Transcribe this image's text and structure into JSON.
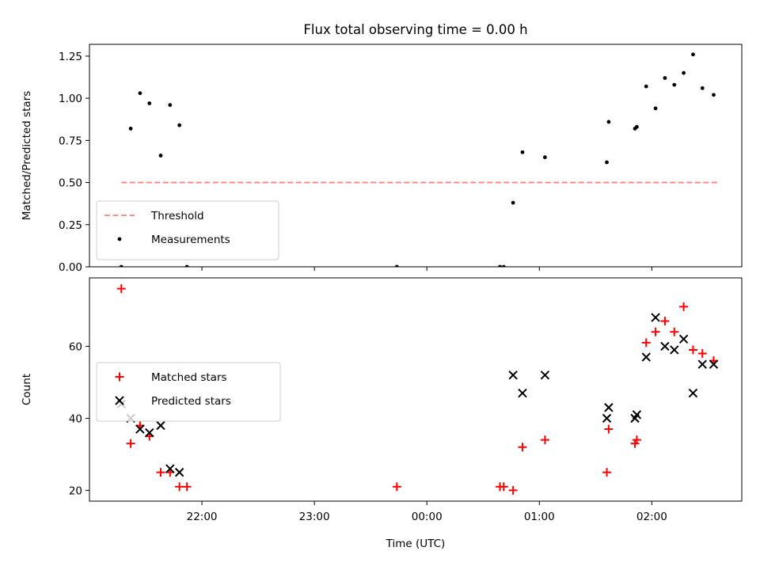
{
  "figure": {
    "title": "Flux total observing time = 0.00 h",
    "xlabel": "Time (UTC)",
    "xticks": [
      "22:00",
      "23:00",
      "00:00",
      "01:00",
      "02:00"
    ]
  },
  "chart_data": [
    {
      "type": "scatter",
      "ylabel": "Matched/Predicted stars",
      "ylim": [
        0,
        1.32
      ],
      "yticks": [
        "0.00",
        "0.25",
        "0.50",
        "0.75",
        "1.00",
        "1.25"
      ],
      "grid": false,
      "legend_position": "lower-left",
      "threshold": {
        "name": "Threshold",
        "value": 0.5,
        "x_start": "21:17",
        "x_end": "02:35",
        "color": "#ff7f7f"
      },
      "series": [
        {
          "name": "Measurements",
          "color": "#000000",
          "points": [
            {
              "x": "21:17",
              "y": 0.0
            },
            {
              "x": "21:22",
              "y": 0.82
            },
            {
              "x": "21:27",
              "y": 1.03
            },
            {
              "x": "21:32",
              "y": 0.97
            },
            {
              "x": "21:38",
              "y": 0.66
            },
            {
              "x": "21:43",
              "y": 0.96
            },
            {
              "x": "21:48",
              "y": 0.84
            },
            {
              "x": "21:52",
              "y": 0.0
            },
            {
              "x": "23:44",
              "y": 0.0
            },
            {
              "x": "00:39",
              "y": 0.0
            },
            {
              "x": "00:41",
              "y": 0.0
            },
            {
              "x": "00:46",
              "y": 0.38
            },
            {
              "x": "00:51",
              "y": 0.68
            },
            {
              "x": "01:03",
              "y": 0.65
            },
            {
              "x": "01:36",
              "y": 0.62
            },
            {
              "x": "01:37",
              "y": 0.86
            },
            {
              "x": "01:51",
              "y": 0.82
            },
            {
              "x": "01:52",
              "y": 0.83
            },
            {
              "x": "01:57",
              "y": 1.07
            },
            {
              "x": "02:02",
              "y": 0.94
            },
            {
              "x": "02:07",
              "y": 1.12
            },
            {
              "x": "02:12",
              "y": 1.08
            },
            {
              "x": "02:17",
              "y": 1.15
            },
            {
              "x": "02:22",
              "y": 1.26
            },
            {
              "x": "02:27",
              "y": 1.06
            },
            {
              "x": "02:33",
              "y": 1.02
            }
          ]
        }
      ]
    },
    {
      "type": "scatter",
      "ylabel": "Count",
      "ylim": [
        17,
        79
      ],
      "yticks": [
        "20",
        "40",
        "60"
      ],
      "grid": false,
      "legend_position": "center-left",
      "series": [
        {
          "name": "Matched stars",
          "marker": "+",
          "color": "#ff0000",
          "points": [
            {
              "x": "21:17",
              "y": 76
            },
            {
              "x": "21:22",
              "y": 33
            },
            {
              "x": "21:27",
              "y": 38
            },
            {
              "x": "21:32",
              "y": 35
            },
            {
              "x": "21:38",
              "y": 25
            },
            {
              "x": "21:43",
              "y": 25
            },
            {
              "x": "21:48",
              "y": 21
            },
            {
              "x": "21:52",
              "y": 21
            },
            {
              "x": "23:44",
              "y": 21
            },
            {
              "x": "00:39",
              "y": 21
            },
            {
              "x": "00:41",
              "y": 21
            },
            {
              "x": "00:46",
              "y": 20
            },
            {
              "x": "00:51",
              "y": 32
            },
            {
              "x": "01:03",
              "y": 34
            },
            {
              "x": "01:36",
              "y": 25
            },
            {
              "x": "01:37",
              "y": 37
            },
            {
              "x": "01:51",
              "y": 33
            },
            {
              "x": "01:52",
              "y": 34
            },
            {
              "x": "01:57",
              "y": 61
            },
            {
              "x": "02:02",
              "y": 64
            },
            {
              "x": "02:07",
              "y": 67
            },
            {
              "x": "02:12",
              "y": 64
            },
            {
              "x": "02:17",
              "y": 71
            },
            {
              "x": "02:22",
              "y": 59
            },
            {
              "x": "02:27",
              "y": 58
            },
            {
              "x": "02:33",
              "y": 56
            }
          ]
        },
        {
          "name": "Predicted stars",
          "marker": "x",
          "color": "#000000",
          "points": [
            {
              "x": "21:17",
              "y": 44
            },
            {
              "x": "21:22",
              "y": 40
            },
            {
              "x": "21:27",
              "y": 37
            },
            {
              "x": "21:32",
              "y": 36
            },
            {
              "x": "21:38",
              "y": 38
            },
            {
              "x": "21:43",
              "y": 26
            },
            {
              "x": "21:48",
              "y": 25
            },
            {
              "x": "00:46",
              "y": 52
            },
            {
              "x": "00:51",
              "y": 47
            },
            {
              "x": "01:03",
              "y": 52
            },
            {
              "x": "01:36",
              "y": 40
            },
            {
              "x": "01:37",
              "y": 43
            },
            {
              "x": "01:51",
              "y": 40
            },
            {
              "x": "01:52",
              "y": 41
            },
            {
              "x": "01:57",
              "y": 57
            },
            {
              "x": "02:02",
              "y": 68
            },
            {
              "x": "02:07",
              "y": 60
            },
            {
              "x": "02:12",
              "y": 59
            },
            {
              "x": "02:17",
              "y": 62
            },
            {
              "x": "02:22",
              "y": 47
            },
            {
              "x": "02:27",
              "y": 55
            },
            {
              "x": "02:33",
              "y": 55
            }
          ]
        }
      ]
    }
  ]
}
